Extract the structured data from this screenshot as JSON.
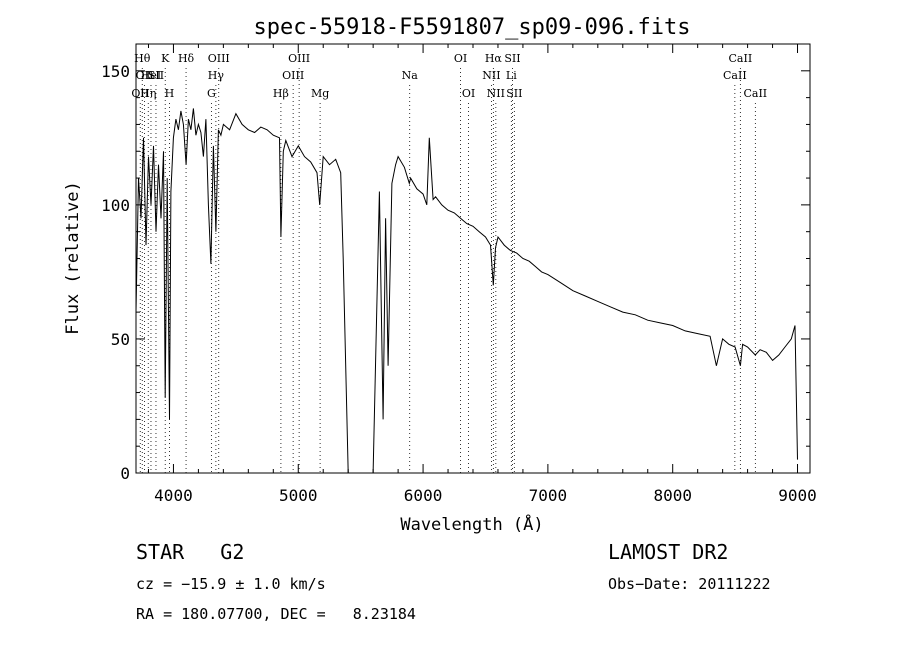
{
  "chart_data": {
    "type": "line",
    "title": "spec-55918-F5591807_sp09-096.fits",
    "xlabel": "Wavelength (Å)",
    "ylabel": "Flux (relative)",
    "xlim": [
      3700,
      9100
    ],
    "ylim": [
      0,
      160
    ],
    "xticks": [
      4000,
      5000,
      6000,
      7000,
      8000,
      9000
    ],
    "yticks": [
      0,
      50,
      100,
      150
    ],
    "grid": false,
    "series": [
      {
        "x": [
          3700,
          3720,
          3740,
          3760,
          3780,
          3800,
          3820,
          3840,
          3860,
          3880,
          3900,
          3920,
          3934,
          3950,
          3968,
          3980,
          4000,
          4020,
          4040,
          4060,
          4080,
          4101,
          4120,
          4140,
          4160,
          4180,
          4200,
          4220,
          4240,
          4260,
          4280,
          4300,
          4320,
          4340,
          4360,
          4380,
          4400,
          4450,
          4500,
          4550,
          4600,
          4650,
          4700,
          4750,
          4800,
          4850,
          4861,
          4880,
          4900,
          4950,
          5000,
          5050,
          5100,
          5150,
          5172,
          5200,
          5250,
          5300,
          5340,
          5360,
          5380,
          5400,
          5600,
          5650,
          5680,
          5700,
          5720,
          5750,
          5780,
          5800,
          5850,
          5890,
          5900,
          5950,
          6000,
          6030,
          6050,
          6080,
          6100,
          6150,
          6200,
          6250,
          6300,
          6350,
          6400,
          6450,
          6500,
          6540,
          6563,
          6580,
          6600,
          6650,
          6700,
          6750,
          6800,
          6850,
          6900,
          6950,
          7000,
          7100,
          7200,
          7300,
          7400,
          7500,
          7600,
          7700,
          7800,
          7900,
          8000,
          8100,
          8200,
          8300,
          8350,
          8400,
          8450,
          8500,
          8542,
          8560,
          8600,
          8662,
          8700,
          8750,
          8800,
          8850,
          8900,
          8950,
          8980,
          9000
        ],
        "y": [
          60,
          110,
          95,
          125,
          85,
          118,
          100,
          122,
          90,
          115,
          95,
          120,
          28,
          110,
          20,
          105,
          125,
          132,
          128,
          135,
          130,
          115,
          132,
          128,
          136,
          126,
          130,
          127,
          118,
          132,
          100,
          78,
          122,
          90,
          128,
          126,
          130,
          128,
          134,
          130,
          128,
          127,
          129,
          128,
          126,
          125,
          88,
          120,
          124,
          118,
          122,
          118,
          116,
          112,
          100,
          118,
          115,
          117,
          112,
          80,
          40,
          0,
          0,
          105,
          20,
          95,
          40,
          108,
          115,
          118,
          114,
          108,
          110,
          106,
          104,
          100,
          125,
          102,
          103,
          100,
          98,
          97,
          95,
          93,
          92,
          90,
          88,
          85,
          70,
          84,
          88,
          85,
          83,
          82,
          80,
          79,
          77,
          75,
          74,
          71,
          68,
          66,
          64,
          62,
          60,
          59,
          57,
          56,
          55,
          53,
          52,
          51,
          40,
          50,
          48,
          47,
          40,
          48,
          47,
          44,
          46,
          45,
          42,
          44,
          47,
          50,
          55,
          5
        ]
      }
    ],
    "line_labels": [
      {
        "wave": 3734,
        "text": "OII",
        "row": 3
      },
      {
        "wave": 3750,
        "text": "Hθ",
        "row": 1
      },
      {
        "wave": 3768,
        "text": "OII",
        "row": 2
      },
      {
        "wave": 3798,
        "text": "Hη",
        "row": 3
      },
      {
        "wave": 3820,
        "text": "HeI",
        "row": 2
      },
      {
        "wave": 3860,
        "text": "SII",
        "row": 2
      },
      {
        "wave": 3934,
        "text": "K",
        "row": 1
      },
      {
        "wave": 3968,
        "text": "H",
        "row": 3
      },
      {
        "wave": 4101,
        "text": "Hδ",
        "row": 1
      },
      {
        "wave": 4304,
        "text": "G",
        "row": 3
      },
      {
        "wave": 4340,
        "text": "Hγ",
        "row": 2
      },
      {
        "wave": 4363,
        "text": "OIII",
        "row": 1
      },
      {
        "wave": 4861,
        "text": "Hβ",
        "row": 3
      },
      {
        "wave": 4959,
        "text": "OIII",
        "row": 2
      },
      {
        "wave": 5007,
        "text": "OIII",
        "row": 1
      },
      {
        "wave": 5175,
        "text": "Mg",
        "row": 3
      },
      {
        "wave": 5893,
        "text": "Na",
        "row": 2
      },
      {
        "wave": 6300,
        "text": "OI",
        "row": 1
      },
      {
        "wave": 6364,
        "text": "OI",
        "row": 3
      },
      {
        "wave": 6548,
        "text": "NII",
        "row": 2
      },
      {
        "wave": 6563,
        "text": "Hα",
        "row": 1
      },
      {
        "wave": 6583,
        "text": "NII",
        "row": 3
      },
      {
        "wave": 6707,
        "text": "Li",
        "row": 2
      },
      {
        "wave": 6716,
        "text": "SII",
        "row": 1
      },
      {
        "wave": 6731,
        "text": "SII",
        "row": 3
      },
      {
        "wave": 8498,
        "text": "CaII",
        "row": 2
      },
      {
        "wave": 8542,
        "text": "CaII",
        "row": 1
      },
      {
        "wave": 8662,
        "text": "CaII",
        "row": 3
      }
    ]
  },
  "info": {
    "class_label": "STAR",
    "subclass": "G2",
    "survey": "LAMOST DR2",
    "cz": "cz = −15.9 ± 1.0 km/s",
    "obs_date": "Obs−Date: 20111222",
    "coords": "RA = 180.07700, DEC =   8.23184"
  },
  "colors": {
    "line": "#000000",
    "background": "#ffffff"
  }
}
